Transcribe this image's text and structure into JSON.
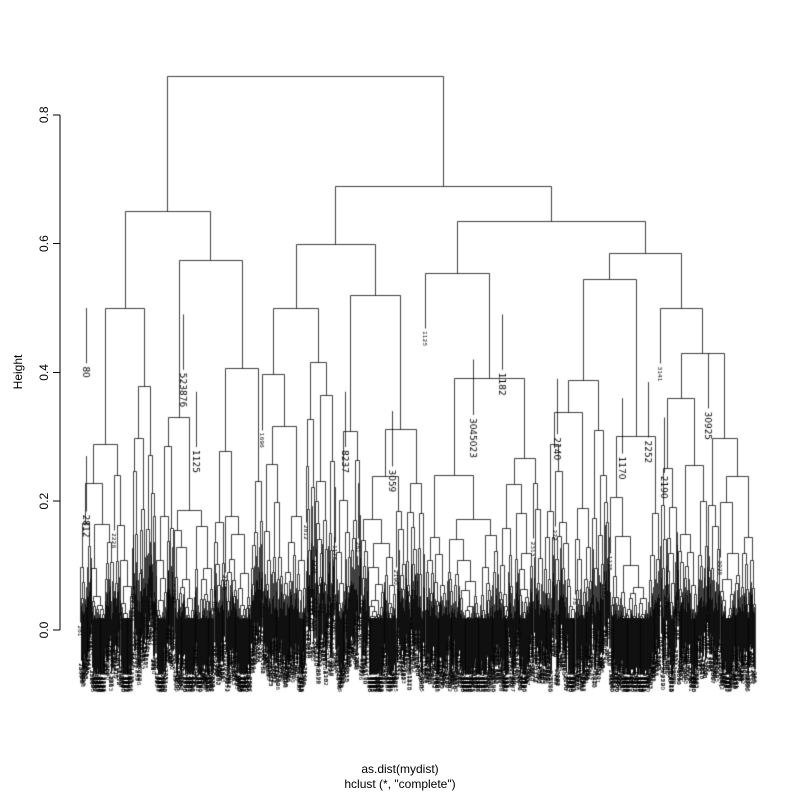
{
  "figure": {
    "background": "#ffffff",
    "foreground": "#000000"
  },
  "chart_data": {
    "type": "dendrogram",
    "title": "",
    "xlabel": "as.dist(mydist)",
    "sub": "hclust (*, \"complete\")",
    "ylabel": "Height",
    "ytick_labels": [
      "0.0",
      "0.2",
      "0.4",
      "0.6",
      "0.8"
    ],
    "yticks": [
      0.0,
      0.2,
      0.4,
      0.6,
      0.8
    ],
    "ylim": [
      0,
      0.9
    ],
    "root_height": 0.86,
    "hang": 0.1,
    "linkage_method": "complete",
    "distance_object": "as.dist(mydist)",
    "top_tree": {
      "h": 0.86,
      "children": [
        {
          "h": 0.65,
          "frac": 0.27,
          "children": [
            {
              "h": 0.5,
              "frac": 0.42
            },
            {
              "h": 0.575,
              "frac": 0.58
            }
          ]
        },
        {
          "h": 0.69,
          "frac": 0.73,
          "children": [
            {
              "h": 0.6,
              "frac": 0.33,
              "children": [
                {
                  "h": 0.5,
                  "frac": 0.45
                },
                {
                  "h": 0.52,
                  "frac": 0.55
                }
              ]
            },
            {
              "h": 0.635,
              "frac": 0.67,
              "children": [
                {
                  "h": 0.555,
                  "frac": 0.36
                },
                {
                  "h": 0.585,
                  "frac": 0.64,
                  "children": [
                    {
                      "h": 0.545,
                      "frac": 0.55
                    },
                    {
                      "h": 0.5,
                      "frac": 0.45
                    }
                  ]
                }
              ]
            }
          ]
        }
      ]
    },
    "visible_leaf_labels": [
      {
        "text": "80",
        "x": 86,
        "h": 0.5
      },
      {
        "text": "2812",
        "x": 86,
        "h": 0.27
      },
      {
        "text": "523876",
        "x": 183,
        "h": 0.49
      },
      {
        "text": "1125",
        "x": 196,
        "h": 0.37
      },
      {
        "text": "8237",
        "x": 345,
        "h": 0.37
      },
      {
        "text": "3059",
        "x": 392,
        "h": 0.34
      },
      {
        "text": "3045023",
        "x": 473,
        "h": 0.42
      },
      {
        "text": "1182",
        "x": 502,
        "h": 0.49
      },
      {
        "text": "2140",
        "x": 557,
        "h": 0.39
      },
      {
        "text": "1170",
        "x": 622,
        "h": 0.36
      },
      {
        "text": "2252",
        "x": 648,
        "h": 0.385
      },
      {
        "text": "2190",
        "x": 664,
        "h": 0.33
      },
      {
        "text": "30925",
        "x": 708,
        "h": 0.43
      }
    ],
    "leaf_label_pool": [
      "281",
      "2307",
      "78",
      "2685",
      "328",
      "2435",
      "359",
      "2226",
      "169",
      "3555",
      "1810",
      "1125",
      "2313",
      "405",
      "3025",
      "2190",
      "1176",
      "2252",
      "3141",
      "520",
      "2812",
      "168",
      "355",
      "243",
      "222",
      "3590",
      "1696",
      "782",
      "268",
      "230",
      "1182",
      "3283"
    ],
    "n_leaves_drawn": 1400
  }
}
